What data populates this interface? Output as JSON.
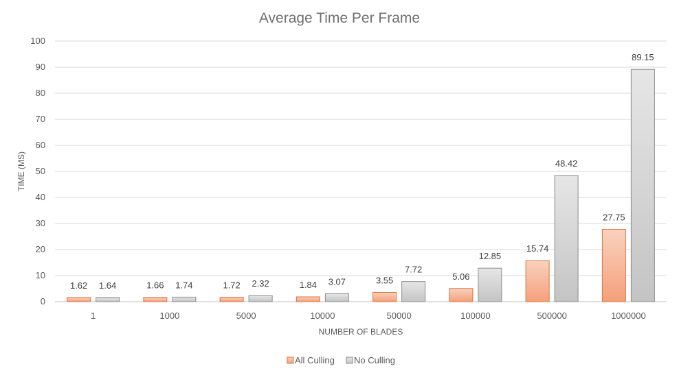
{
  "chart_data": {
    "type": "bar",
    "title": "Average Time Per Frame",
    "xlabel": "NUMBER OF BLADES",
    "ylabel": "TIME (MS)",
    "ylim": [
      0,
      100
    ],
    "yticks": [
      0,
      10,
      20,
      30,
      40,
      50,
      60,
      70,
      80,
      90,
      100
    ],
    "categories": [
      "1",
      "1000",
      "5000",
      "10000",
      "50000",
      "100000",
      "500000",
      "1000000"
    ],
    "series": [
      {
        "name": "All Culling",
        "values": [
          1.62,
          1.66,
          1.72,
          1.84,
          3.55,
          5.06,
          15.74,
          27.75
        ],
        "color": "#f4a582",
        "stroke": "#e0733f"
      },
      {
        "name": "No Culling",
        "values": [
          1.64,
          1.74,
          2.32,
          3.07,
          7.72,
          12.85,
          48.42,
          89.15
        ],
        "color": "#d4d4d4",
        "stroke": "#8c8c8c"
      }
    ],
    "grid": true,
    "legend": "bottom"
  }
}
